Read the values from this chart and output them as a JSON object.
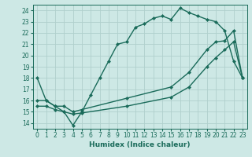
{
  "xlabel": "Humidex (Indice chaleur)",
  "xlim": [
    -0.5,
    23.5
  ],
  "ylim": [
    13.5,
    24.5
  ],
  "xticks": [
    0,
    1,
    2,
    3,
    4,
    5,
    6,
    7,
    8,
    9,
    10,
    11,
    12,
    13,
    14,
    15,
    16,
    17,
    18,
    19,
    20,
    21,
    22,
    23
  ],
  "yticks": [
    14,
    15,
    16,
    17,
    18,
    19,
    20,
    21,
    22,
    23,
    24
  ],
  "bg_color": "#cde8e5",
  "line_color": "#1a6b5a",
  "grid_color": "#b0d0cc",
  "line1_x": [
    0,
    1,
    2,
    3,
    4,
    5,
    6,
    7,
    8,
    9,
    10,
    11,
    12,
    13,
    14,
    15,
    16,
    17,
    18,
    19,
    20,
    21,
    22,
    23
  ],
  "line1_y": [
    18,
    16,
    15.5,
    15,
    13.8,
    15,
    16.5,
    18,
    19.5,
    21,
    21.2,
    22.5,
    22.8,
    23.3,
    23.5,
    23.2,
    24.2,
    23.8,
    23.5,
    23.2,
    23.0,
    22.2,
    19.5,
    18
  ],
  "line2_x": [
    0,
    1,
    2,
    3,
    4,
    5,
    10,
    15,
    17,
    19,
    20,
    21,
    22,
    23
  ],
  "line2_y": [
    16,
    16,
    15.5,
    15.5,
    15,
    15.2,
    16.2,
    17.2,
    18.5,
    20.5,
    21.2,
    21.3,
    22.2,
    18
  ],
  "line3_x": [
    0,
    1,
    2,
    3,
    4,
    5,
    10,
    15,
    17,
    19,
    20,
    21,
    22,
    23
  ],
  "line3_y": [
    15.5,
    15.5,
    15.2,
    15,
    14.8,
    14.9,
    15.5,
    16.3,
    17.2,
    19.0,
    19.8,
    20.5,
    21.2,
    18
  ],
  "marker": "D",
  "markersize": 2.5,
  "linewidth": 1.0,
  "tick_fontsize": 5.5,
  "label_fontsize": 6.5
}
